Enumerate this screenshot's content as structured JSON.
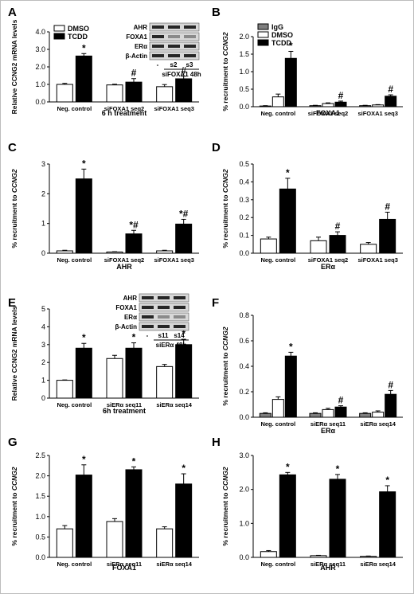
{
  "colors": {
    "dmso": "#ffffff",
    "tcdd": "#000000",
    "igg": "#7f7f7f",
    "frame": "#bdbdbd"
  },
  "chart_data": [
    {
      "id": "A",
      "type": "bar",
      "panel_label": "A",
      "ylabel": "Relative CCNG2 mRNA levels",
      "xlabel": "6 h treatment",
      "ylim": [
        0,
        4
      ],
      "yticks": [
        "0.0",
        "1.0",
        "2.0",
        "3.0",
        "4.0"
      ],
      "categories": [
        "Neg. control",
        "siFOXA1 seq2",
        "siFOXA1 seq3"
      ],
      "series": [
        {
          "name": "DMSO",
          "key": "dmso",
          "values": [
            1.0,
            0.97,
            0.87
          ],
          "errors": [
            0.06,
            0.04,
            0.12
          ],
          "marks": [
            "",
            "",
            ""
          ]
        },
        {
          "name": "TCDD",
          "key": "tcdd",
          "values": [
            2.62,
            1.13,
            1.32
          ],
          "errors": [
            0.14,
            0.2,
            0.15
          ],
          "marks": [
            "*",
            "#",
            "#"
          ]
        }
      ],
      "legend": "top-left",
      "blot": {
        "rows": [
          "AHR",
          "FOXA1",
          "ERα",
          "β-Actin"
        ],
        "lanes": [
          "-",
          "s2",
          "s3"
        ],
        "caption": "siFOXA1 48h"
      }
    },
    {
      "id": "B",
      "type": "bar",
      "panel_label": "B",
      "ylabel": "% recruitment to CCNG2",
      "xlabel": "FOXA1",
      "ylim": [
        0,
        2.0
      ],
      "yticks": [
        "0.0",
        "0.5",
        "1.0",
        "1.5",
        "2.0"
      ],
      "categories": [
        "Neg. control",
        "siFOXA1 seq2",
        "siFOXA1 seq3"
      ],
      "series": [
        {
          "name": "IgG",
          "key": "igg",
          "values": [
            0.02,
            0.03,
            0.03
          ],
          "errors": [
            0.01,
            0.01,
            0.01
          ],
          "marks": [
            "",
            "",
            ""
          ]
        },
        {
          "name": "DMSO",
          "key": "dmso",
          "values": [
            0.28,
            0.09,
            0.05
          ],
          "errors": [
            0.08,
            0.02,
            0.01
          ],
          "marks": [
            "",
            "",
            ""
          ]
        },
        {
          "name": "TCDD",
          "key": "tcdd",
          "values": [
            1.38,
            0.13,
            0.3
          ],
          "errors": [
            0.2,
            0.03,
            0.04
          ],
          "marks": [
            "*",
            "#",
            "#"
          ]
        }
      ],
      "legend": "top-left"
    },
    {
      "id": "C",
      "type": "bar",
      "panel_label": "C",
      "ylabel": "% recruitment to CCNG2",
      "xlabel": "AHR",
      "ylim": [
        0,
        3
      ],
      "yticks": [
        "0",
        "1",
        "2",
        "3"
      ],
      "categories": [
        "Neg. control",
        "siFOXA1 seq2",
        "siFOXA1 seq3"
      ],
      "series": [
        {
          "name": "DMSO",
          "key": "dmso",
          "values": [
            0.08,
            0.04,
            0.08
          ],
          "errors": [
            0.02,
            0.01,
            0.02
          ],
          "marks": [
            "",
            "",
            ""
          ]
        },
        {
          "name": "TCDD",
          "key": "tcdd",
          "values": [
            2.5,
            0.65,
            0.98
          ],
          "errors": [
            0.33,
            0.12,
            0.16
          ],
          "marks": [
            "*",
            "*#",
            "*#"
          ]
        }
      ]
    },
    {
      "id": "D",
      "type": "bar",
      "panel_label": "D",
      "ylabel": "% recruitment to CCNG2",
      "xlabel": "ERα",
      "ylim": [
        0,
        0.5
      ],
      "yticks": [
        "0.0",
        "0.1",
        "0.2",
        "0.3",
        "0.4",
        "0.5"
      ],
      "categories": [
        "Neg. control",
        "siFOXA1 seq2",
        "siFOXA1 seq3"
      ],
      "series": [
        {
          "name": "DMSO",
          "key": "dmso",
          "values": [
            0.08,
            0.07,
            0.05
          ],
          "errors": [
            0.01,
            0.02,
            0.01
          ],
          "marks": [
            "",
            "",
            ""
          ]
        },
        {
          "name": "TCDD",
          "key": "tcdd",
          "values": [
            0.36,
            0.1,
            0.19
          ],
          "errors": [
            0.06,
            0.02,
            0.04
          ],
          "marks": [
            "*",
            "#",
            "#"
          ]
        }
      ]
    },
    {
      "id": "E",
      "type": "bar",
      "panel_label": "E",
      "ylabel": "Relative CCNG2 mRNA levels",
      "xlabel": "6h treatment",
      "ylim": [
        0,
        5
      ],
      "yticks": [
        "0",
        "1",
        "2",
        "3",
        "4",
        "5"
      ],
      "categories": [
        "Neg. control",
        "siERα seq11",
        "siERα seq14"
      ],
      "series": [
        {
          "name": "DMSO",
          "key": "dmso",
          "values": [
            1.0,
            2.22,
            1.77
          ],
          "errors": [
            0.02,
            0.18,
            0.12
          ],
          "marks": [
            "",
            "",
            ""
          ]
        },
        {
          "name": "TCDD",
          "key": "tcdd",
          "values": [
            2.8,
            2.8,
            3.0
          ],
          "errors": [
            0.27,
            0.3,
            0.3
          ],
          "marks": [
            "*",
            "*",
            "*"
          ]
        }
      ],
      "blot": {
        "rows": [
          "AHR",
          "FOXA1",
          "ERα",
          "β-Actin"
        ],
        "lanes": [
          "-",
          "s11",
          "s14"
        ],
        "caption": "siERα 48h"
      }
    },
    {
      "id": "F",
      "type": "bar",
      "panel_label": "F",
      "ylabel": "% recruitment to CCNG2",
      "xlabel": "ERα",
      "ylim": [
        0,
        0.8
      ],
      "yticks": [
        "0.0",
        "0.2",
        "0.4",
        "0.6",
        "0.8"
      ],
      "categories": [
        "Neg. control",
        "siERα seq11",
        "siERα seq14"
      ],
      "series": [
        {
          "name": "IgG",
          "key": "igg",
          "values": [
            0.03,
            0.03,
            0.03
          ],
          "errors": [
            0.005,
            0.005,
            0.005
          ],
          "marks": [
            "",
            "",
            ""
          ]
        },
        {
          "name": "DMSO",
          "key": "dmso",
          "values": [
            0.14,
            0.06,
            0.04
          ],
          "errors": [
            0.02,
            0.01,
            0.01
          ],
          "marks": [
            "",
            "",
            ""
          ]
        },
        {
          "name": "TCDD",
          "key": "tcdd",
          "values": [
            0.48,
            0.08,
            0.18
          ],
          "errors": [
            0.03,
            0.01,
            0.03
          ],
          "marks": [
            "*",
            "#",
            "#"
          ]
        }
      ]
    },
    {
      "id": "G",
      "type": "bar",
      "panel_label": "G",
      "ylabel": "% recruitment to CCNG2",
      "xlabel": "FOXA1",
      "ylim": [
        0,
        2.5
      ],
      "yticks": [
        "0.0",
        "0.5",
        "1.0",
        "1.5",
        "2.0",
        "2.5"
      ],
      "categories": [
        "Neg. control",
        "siERα seq11",
        "siERα seq14"
      ],
      "series": [
        {
          "name": "DMSO",
          "key": "dmso",
          "values": [
            0.7,
            0.88,
            0.7
          ],
          "errors": [
            0.08,
            0.07,
            0.05
          ],
          "marks": [
            "",
            "",
            ""
          ]
        },
        {
          "name": "TCDD",
          "key": "tcdd",
          "values": [
            2.02,
            2.15,
            1.8
          ],
          "errors": [
            0.25,
            0.07,
            0.25
          ],
          "marks": [
            "*",
            "*",
            "*"
          ]
        }
      ]
    },
    {
      "id": "H",
      "type": "bar",
      "panel_label": "H",
      "ylabel": "% recruitment to CCNG2",
      "xlabel": "AHR",
      "ylim": [
        0,
        3.0
      ],
      "yticks": [
        "0.0",
        "1.0",
        "2.0",
        "3.0"
      ],
      "categories": [
        "Neg. control",
        "siERα seq11",
        "siERα seq14"
      ],
      "series": [
        {
          "name": "DMSO",
          "key": "dmso",
          "values": [
            0.17,
            0.05,
            0.03
          ],
          "errors": [
            0.03,
            0.01,
            0.01
          ],
          "marks": [
            "",
            "",
            ""
          ]
        },
        {
          "name": "TCDD",
          "key": "tcdd",
          "values": [
            2.43,
            2.3,
            1.93
          ],
          "errors": [
            0.07,
            0.14,
            0.18
          ],
          "marks": [
            "*",
            "*",
            "*"
          ]
        }
      ]
    }
  ]
}
